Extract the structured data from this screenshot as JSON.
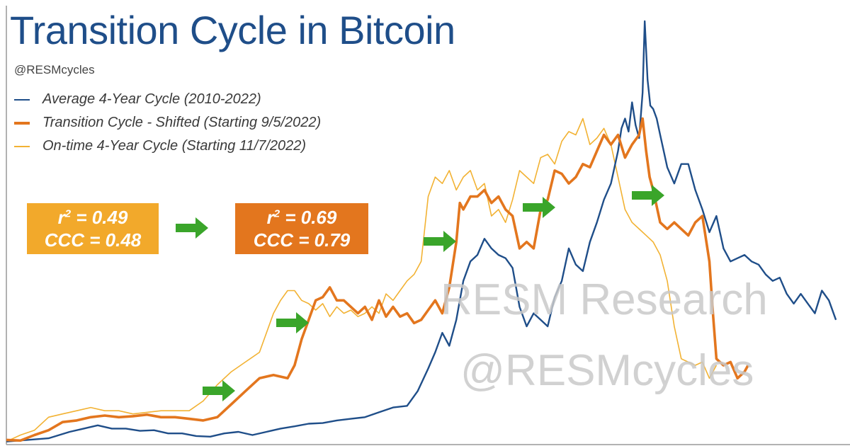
{
  "title": "Transition Cycle in Bitcoin",
  "handle": "@RESMcycles",
  "legend": [
    {
      "label": "Average 4-Year Cycle (2010-2022)",
      "color": "#1f4e89",
      "weight": "thin"
    },
    {
      "label": "Transition Cycle - Shifted (Starting 9/5/2022)",
      "color": "#e3761e",
      "weight": "thick"
    },
    {
      "label": "On-time 4-Year Cycle (Starting 11/7/2022)",
      "color": "#f2b233",
      "weight": "thin"
    }
  ],
  "boxes": [
    {
      "r2_prefix": "r",
      "r2_sup": "2",
      "r2_value": " = 0.49",
      "ccc": "CCC = 0.48",
      "color": "#f2a92b"
    },
    {
      "r2_prefix": "r",
      "r2_sup": "2",
      "r2_value": " = 0.69",
      "ccc": "CCC = 0.79",
      "color": "#e3761e"
    }
  ],
  "watermark": {
    "line1": "RESM Research",
    "line2": "@RESMcycles"
  },
  "arrow_color": "#3aa52a",
  "chart_data": {
    "type": "line",
    "title": "Transition Cycle in Bitcoin",
    "xlabel": "",
    "ylabel": "",
    "grid": false,
    "legend_position": "top-left",
    "x_unit": "relative time (unlabeled)",
    "y_unit": "relative price (unlabeled)",
    "series": [
      {
        "name": "Average 4-Year Cycle (2010-2022)",
        "x": [
          0,
          30,
          60,
          90,
          110,
          130,
          150,
          170,
          190,
          210,
          230,
          250,
          270,
          290,
          310,
          330,
          350,
          370,
          390,
          410,
          430,
          450,
          470,
          490,
          510,
          530,
          550,
          570,
          585,
          600,
          610,
          620,
          630,
          640,
          650,
          660,
          670,
          680,
          690,
          700,
          710,
          720,
          730,
          740,
          750,
          760,
          770,
          780,
          790,
          800,
          810,
          820,
          830,
          840,
          850,
          860,
          870,
          875,
          880,
          885,
          890,
          895,
          900,
          905,
          908,
          912,
          916,
          920,
          925,
          930,
          940,
          950,
          960,
          970,
          980,
          990,
          1000,
          1010,
          1020,
          1030,
          1040,
          1050,
          1060,
          1070,
          1080,
          1090,
          1100,
          1110,
          1120,
          1130,
          1140,
          1150,
          1160,
          1170,
          1180
        ],
        "y": [
          0.5,
          1.0,
          1.5,
          3.5,
          4.5,
          5.5,
          4.5,
          4.5,
          3.8,
          4.0,
          3.0,
          3.0,
          2.2,
          2.0,
          3.0,
          3.5,
          2.5,
          3.5,
          4.5,
          5.2,
          6.0,
          6.2,
          7.0,
          7.5,
          8.0,
          9.5,
          11.0,
          11.5,
          16.0,
          23.0,
          28.0,
          34.0,
          30.0,
          38.0,
          50.0,
          56.0,
          58.0,
          63.0,
          60.0,
          58.0,
          57.0,
          54.0,
          42.0,
          36.0,
          40.0,
          38.0,
          36.0,
          45.0,
          50.0,
          60.0,
          55.0,
          53.0,
          62.0,
          68.0,
          75.0,
          80.0,
          90.0,
          97.0,
          100.0,
          96.0,
          105.0,
          98.0,
          94.0,
          108.0,
          130.0,
          112.0,
          104.0,
          103.0,
          100.0,
          95.0,
          85.0,
          80.0,
          86.0,
          86.0,
          78.0,
          72.0,
          65.0,
          70.0,
          60.0,
          56.0,
          57.0,
          58.0,
          56.0,
          55.0,
          52.0,
          50.0,
          51.0,
          46.0,
          43.0,
          46.0,
          43.0,
          40.0,
          47.0,
          44.0,
          38.0
        ]
      },
      {
        "name": "Transition Cycle - Shifted (Starting 9/5/2022)",
        "x": [
          0,
          20,
          40,
          60,
          80,
          100,
          120,
          140,
          160,
          180,
          200,
          220,
          240,
          260,
          280,
          300,
          320,
          340,
          360,
          380,
          400,
          410,
          420,
          430,
          440,
          450,
          460,
          470,
          480,
          490,
          500,
          510,
          520,
          530,
          540,
          550,
          560,
          570,
          580,
          590,
          600,
          610,
          620,
          630,
          640,
          645,
          650,
          660,
          670,
          680,
          690,
          700,
          710,
          720,
          730,
          740,
          750,
          760,
          770,
          780,
          790,
          800,
          810,
          820,
          830,
          840,
          850,
          860,
          870,
          880,
          890,
          900,
          905,
          910,
          915,
          920,
          930,
          940,
          950,
          960,
          970,
          980,
          990,
          1000,
          1005,
          1010,
          1020,
          1030,
          1040,
          1050,
          1055
        ],
        "y": [
          1.0,
          0.8,
          2.5,
          4.0,
          6.5,
          7.0,
          8.0,
          8.5,
          8.0,
          8.3,
          8.8,
          8.0,
          8.0,
          7.5,
          7.0,
          8.0,
          12.0,
          16.0,
          20.0,
          21.0,
          20.0,
          24.0,
          32.0,
          38.0,
          44.0,
          45.0,
          48.0,
          44.0,
          44.0,
          42.0,
          40.0,
          42.0,
          38.0,
          44.0,
          39.0,
          42.0,
          39.0,
          40.0,
          37.0,
          38.0,
          41.0,
          44.0,
          40.0,
          48.0,
          62.0,
          74.0,
          72.0,
          76.0,
          76.0,
          78.0,
          74.0,
          76.0,
          72.0,
          70.0,
          60.0,
          62.0,
          60.0,
          72.0,
          75.0,
          84.0,
          83.0,
          80.0,
          82.0,
          86.0,
          85.0,
          90.0,
          95.0,
          92.0,
          95.0,
          88.0,
          92.0,
          95.0,
          100.0,
          90.0,
          82.0,
          78.0,
          68.0,
          66.0,
          68.0,
          66.0,
          64.0,
          68.0,
          70.0,
          56.0,
          40.0,
          26.0,
          24.0,
          25.0,
          20.0,
          22.0,
          24.0
        ]
      },
      {
        "name": "On-time 4-Year Cycle (Starting 11/7/2022)",
        "x": [
          0,
          20,
          40,
          60,
          80,
          100,
          120,
          140,
          160,
          180,
          200,
          220,
          240,
          260,
          280,
          300,
          320,
          340,
          360,
          380,
          390,
          400,
          410,
          420,
          430,
          440,
          450,
          460,
          470,
          480,
          490,
          500,
          510,
          520,
          530,
          540,
          550,
          560,
          570,
          580,
          590,
          600,
          610,
          620,
          630,
          640,
          650,
          660,
          670,
          680,
          690,
          700,
          710,
          720,
          730,
          740,
          750,
          760,
          770,
          780,
          790,
          800,
          810,
          820,
          830,
          840,
          850,
          860,
          870,
          880,
          890,
          900,
          910,
          920,
          930,
          940,
          950,
          960,
          970,
          980,
          990,
          1000,
          1010
        ],
        "y": [
          0.5,
          2.5,
          4.0,
          8.0,
          9.0,
          10.0,
          11.0,
          10.0,
          10.0,
          9.0,
          9.5,
          10.0,
          10.0,
          10.0,
          13.0,
          18.0,
          22.0,
          25.0,
          28.0,
          40.0,
          44.0,
          47.0,
          47.0,
          44.0,
          43.0,
          41.0,
          43.0,
          39.0,
          42.0,
          40.0,
          41.0,
          39.0,
          40.0,
          42.0,
          40.0,
          46.0,
          44.0,
          47.0,
          50.0,
          52.0,
          56.0,
          76.0,
          82.0,
          80.0,
          84.0,
          78.0,
          82.0,
          84.0,
          78.0,
          80.0,
          70.0,
          72.0,
          68.0,
          75.0,
          84.0,
          82.0,
          80.0,
          88.0,
          89.0,
          86.0,
          93.0,
          96.0,
          95.0,
          100.0,
          92.0,
          94.0,
          97.0,
          92.0,
          82.0,
          72.0,
          68.0,
          66.0,
          64.0,
          62.0,
          58.0,
          50.0,
          36.0,
          26.0,
          25.0,
          24.0,
          25.0,
          20.0,
          24.0
        ]
      }
    ],
    "xlim": [
      0,
      1200
    ],
    "ylim": [
      0,
      130
    ],
    "annotations": [
      {
        "type": "r2_ccc",
        "series": "On-time 4-Year Cycle (Starting 11/7/2022)",
        "r2": 0.49,
        "ccc": 0.48
      },
      {
        "type": "r2_ccc",
        "series": "Transition Cycle - Shifted (Starting 9/5/2022)",
        "r2": 0.69,
        "ccc": 0.79
      }
    ]
  }
}
